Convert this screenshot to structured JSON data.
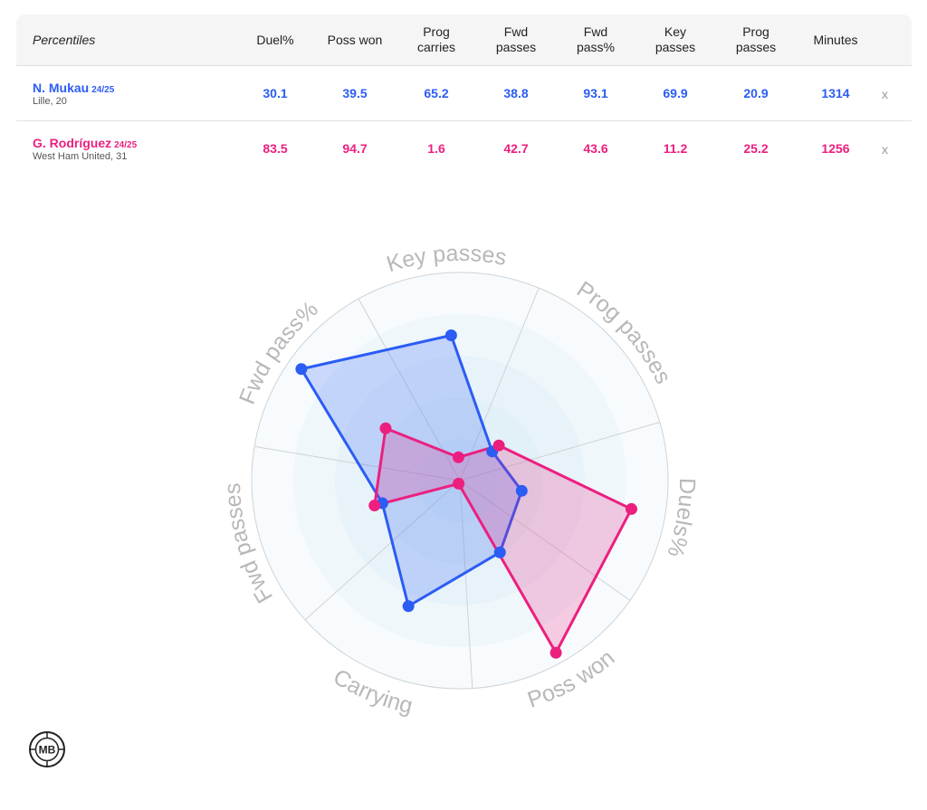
{
  "table": {
    "title": "Percentiles",
    "columns": [
      "Duel%",
      "Poss won",
      "Prog\ncarries",
      "Fwd\npasses",
      "Fwd\npass%",
      "Key\npasses",
      "Prog\npasses",
      "Minutes"
    ],
    "remove_label": "x",
    "players": [
      {
        "name": "N. Mukau",
        "season": "24/25",
        "sub": "Lille, 20",
        "color": "#2b5cf4",
        "values": [
          "30.1",
          "39.5",
          "65.2",
          "38.8",
          "93.1",
          "69.9",
          "20.9",
          "1314"
        ]
      },
      {
        "name": "G. Rodríguez",
        "season": "24/25",
        "sub": "West Ham United, 31",
        "color": "#ec1f7f",
        "values": [
          "83.5",
          "94.7",
          "1.6",
          "42.7",
          "43.6",
          "11.2",
          "25.2",
          "1256"
        ]
      }
    ]
  },
  "chart_data": {
    "type": "radar",
    "axes": [
      "Key passes",
      "Prog passes",
      "Duels%",
      "Poss won",
      "Carrying",
      "Fwd passes",
      "Fwd pass%"
    ],
    "range": [
      0,
      100
    ],
    "grid_rings": 4,
    "series": [
      {
        "name": "N. Mukau",
        "color": "#2b5cf4",
        "values": [
          69.9,
          20.9,
          30.1,
          39.5,
          65.2,
          38.8,
          93.1
        ]
      },
      {
        "name": "G. Rodríguez",
        "color": "#ec1f7f",
        "values": [
          11.2,
          25.2,
          83.5,
          94.7,
          1.6,
          42.7,
          43.6
        ]
      }
    ]
  },
  "logo": {
    "text": "MB"
  }
}
